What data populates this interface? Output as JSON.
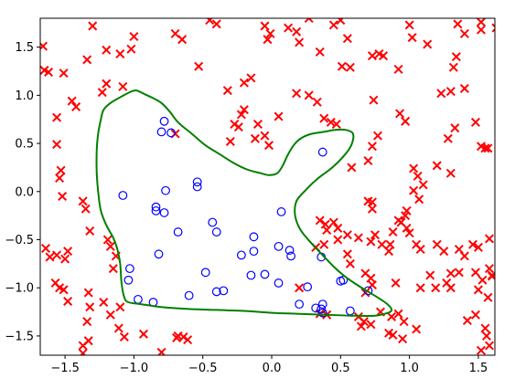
{
  "chart_data": {
    "type": "scatter",
    "title": "",
    "xlabel": "",
    "ylabel": "",
    "xlim": [
      -1.68,
      1.62
    ],
    "ylim": [
      -1.7,
      1.8
    ],
    "grid": false,
    "x_ticks": [
      -1.5,
      -1.0,
      -0.5,
      0.0,
      0.5,
      1.0,
      1.5
    ],
    "x_tick_labels": [
      "−1.5",
      "−1.0",
      "−0.5",
      "0.0",
      "0.5",
      "1.0",
      "1.5"
    ],
    "y_ticks": [
      -1.5,
      -1.0,
      -0.5,
      0.0,
      0.5,
      1.0,
      1.5
    ],
    "y_tick_labels": [
      "−1.5",
      "−1.0",
      "−0.5",
      "0.0",
      "0.5",
      "1.0",
      "1.5"
    ],
    "colors": {
      "class_x": "#ff0000",
      "class_o": "#0000ff",
      "boundary": "#008000",
      "axes": "#000000"
    },
    "series": [
      {
        "marker": "x",
        "points": [
          [
            -1.66,
            1.51
          ],
          [
            -1.65,
            1.26
          ],
          [
            -1.62,
            1.24
          ],
          [
            -1.3,
            1.72
          ],
          [
            -1.2,
            1.47
          ],
          [
            -1.1,
            1.43
          ],
          [
            -1.0,
            1.61
          ],
          [
            -1.02,
            1.48
          ],
          [
            -0.7,
            1.64
          ],
          [
            -0.65,
            1.58
          ],
          [
            -0.45,
            1.78
          ],
          [
            -0.4,
            1.74
          ],
          [
            -0.53,
            1.3
          ],
          [
            -0.32,
            1.05
          ],
          [
            -0.2,
            1.13
          ],
          [
            -0.15,
            1.18
          ],
          [
            -0.05,
            1.72
          ],
          [
            -0.03,
            1.58
          ],
          [
            -0.01,
            1.64
          ],
          [
            0.12,
            1.7
          ],
          [
            0.18,
            1.66
          ],
          [
            0.27,
            1.8
          ],
          [
            0.2,
            1.55
          ],
          [
            0.35,
            1.45
          ],
          [
            0.45,
            1.73
          ],
          [
            0.5,
            1.78
          ],
          [
            0.55,
            1.59
          ],
          [
            0.51,
            1.3
          ],
          [
            0.57,
            1.29
          ],
          [
            0.78,
            1.43
          ],
          [
            0.81,
            1.41
          ],
          [
            0.73,
            1.41
          ],
          [
            0.92,
            1.27
          ],
          [
            1.0,
            1.73
          ],
          [
            1.02,
            1.6
          ],
          [
            1.13,
            1.53
          ],
          [
            1.35,
            1.74
          ],
          [
            1.4,
            1.64
          ],
          [
            1.52,
            1.76
          ],
          [
            1.52,
            1.68
          ],
          [
            1.63,
            1.7
          ],
          [
            1.23,
            1.02
          ],
          [
            1.34,
            1.4
          ],
          [
            1.32,
            1.29
          ],
          [
            1.3,
            1.04
          ],
          [
            1.4,
            1.07
          ],
          [
            -1.51,
            1.23
          ],
          [
            -1.34,
            1.37
          ],
          [
            -1.45,
            0.94
          ],
          [
            -1.42,
            0.88
          ],
          [
            -1.56,
            0.77
          ],
          [
            -1.56,
            0.49
          ],
          [
            -1.53,
            0.22
          ],
          [
            -1.54,
            0.14
          ],
          [
            -1.52,
            -0.05
          ],
          [
            -1.37,
            -0.1
          ],
          [
            -1.35,
            -0.18
          ],
          [
            -1.08,
            1.09
          ],
          [
            -1.2,
            1.12
          ],
          [
            -1.23,
            1.03
          ],
          [
            -0.7,
            0.6
          ],
          [
            -0.3,
            0.52
          ],
          [
            -0.27,
            0.7
          ],
          [
            -0.22,
            0.8
          ],
          [
            -0.2,
            0.85
          ],
          [
            -0.24,
            0.67
          ],
          [
            -0.12,
            0.55
          ],
          [
            -0.1,
            0.7
          ],
          [
            -0.05,
            0.58
          ],
          [
            -0.02,
            0.48
          ],
          [
            0.05,
            0.78
          ],
          [
            0.18,
            1.02
          ],
          [
            0.27,
            1.0
          ],
          [
            0.33,
            0.93
          ],
          [
            0.38,
            0.76
          ],
          [
            0.43,
            0.72
          ],
          [
            0.47,
            0.7
          ],
          [
            0.58,
            0.25
          ],
          [
            0.7,
            0.32
          ],
          [
            0.73,
            0.47
          ],
          [
            0.77,
            0.58
          ],
          [
            0.74,
            0.95
          ],
          [
            0.93,
            0.81
          ],
          [
            0.97,
            0.73
          ],
          [
            1.03,
            0.24
          ],
          [
            1.06,
            0.16
          ],
          [
            1.03,
            0.01
          ],
          [
            1.07,
            -0.08
          ],
          [
            1.1,
            0.07
          ],
          [
            1.2,
            0.27
          ],
          [
            1.3,
            0.19
          ],
          [
            1.28,
            0.55
          ],
          [
            1.33,
            0.66
          ],
          [
            1.48,
            0.72
          ],
          [
            1.52,
            0.47
          ],
          [
            1.55,
            0.45
          ],
          [
            1.57,
            0.45
          ],
          [
            -1.61,
            -0.68
          ],
          [
            -1.64,
            -0.59
          ],
          [
            -1.56,
            -0.66
          ],
          [
            -1.5,
            -0.7
          ],
          [
            -1.48,
            -0.62
          ],
          [
            -1.57,
            -0.95
          ],
          [
            -1.54,
            -1.0
          ],
          [
            -1.51,
            -1.02
          ],
          [
            -1.48,
            -1.14
          ],
          [
            -1.33,
            -1.05
          ],
          [
            -1.32,
            -1.2
          ],
          [
            -1.34,
            -1.35
          ],
          [
            -1.33,
            -1.55
          ],
          [
            -1.37,
            -1.6
          ],
          [
            -1.37,
            -1.68
          ],
          [
            -1.15,
            -0.8
          ],
          [
            -1.22,
            -1.15
          ],
          [
            -1.17,
            -1.28
          ],
          [
            -1.11,
            -1.42
          ],
          [
            -1.1,
            -1.2
          ],
          [
            -1.07,
            -1.51
          ],
          [
            -0.93,
            -1.48
          ],
          [
            -0.8,
            -1.67
          ],
          [
            -0.68,
            -1.5
          ],
          [
            -0.64,
            -1.51
          ],
          [
            -0.61,
            -1.54
          ],
          [
            -0.69,
            -1.52
          ],
          [
            -1.13,
            -0.67
          ],
          [
            -1.17,
            -0.57
          ],
          [
            -1.19,
            -0.5
          ],
          [
            -1.32,
            -0.41
          ],
          [
            0.2,
            -1.0
          ],
          [
            0.35,
            -1.27
          ],
          [
            0.4,
            -1.28
          ],
          [
            0.63,
            -1.3
          ],
          [
            0.65,
            -1.4
          ],
          [
            0.67,
            -1.35
          ],
          [
            0.72,
            -1.38
          ],
          [
            0.85,
            -1.47
          ],
          [
            0.88,
            -1.49
          ],
          [
            1.05,
            -1.43
          ],
          [
            0.95,
            -1.53
          ],
          [
            1.08,
            -1.0
          ],
          [
            1.19,
            -1.0
          ],
          [
            1.15,
            -0.87
          ],
          [
            1.3,
            -1.0
          ],
          [
            1.36,
            -0.84
          ],
          [
            1.48,
            -0.84
          ],
          [
            1.58,
            -0.8
          ],
          [
            1.6,
            -0.88
          ],
          [
            1.6,
            -0.87
          ],
          [
            1.53,
            -0.92
          ],
          [
            1.5,
            -1.02
          ],
          [
            1.57,
            -1.1
          ],
          [
            1.48,
            -1.28
          ],
          [
            1.42,
            -1.34
          ],
          [
            1.55,
            -1.42
          ],
          [
            1.56,
            -1.5
          ],
          [
            1.58,
            -1.6
          ],
          [
            1.52,
            -1.65
          ],
          [
            1.3,
            -0.85
          ],
          [
            1.27,
            -0.95
          ],
          [
            0.35,
            -0.3
          ],
          [
            0.39,
            -0.34
          ],
          [
            0.4,
            -0.4
          ],
          [
            0.45,
            -0.32
          ],
          [
            0.48,
            -0.38
          ],
          [
            0.55,
            -0.45
          ],
          [
            0.63,
            -0.48
          ],
          [
            0.72,
            -0.52
          ],
          [
            0.75,
            -0.45
          ],
          [
            0.8,
            -0.55
          ],
          [
            0.85,
            -0.62
          ],
          [
            0.86,
            -0.55
          ],
          [
            0.88,
            -0.42
          ],
          [
            0.94,
            -0.32
          ],
          [
            1.0,
            -0.43
          ],
          [
            1.05,
            -0.55
          ],
          [
            1.08,
            -0.6
          ],
          [
            1.2,
            -0.55
          ],
          [
            1.25,
            -0.62
          ],
          [
            1.36,
            -0.6
          ],
          [
            1.4,
            -0.67
          ],
          [
            1.46,
            -0.55
          ],
          [
            1.5,
            -0.58
          ],
          [
            1.58,
            -0.49
          ],
          [
            0.55,
            -0.65
          ],
          [
            0.57,
            -0.75
          ],
          [
            0.68,
            -0.85
          ],
          [
            0.72,
            -0.9
          ],
          [
            0.73,
            -0.97
          ],
          [
            0.68,
            -1.05
          ],
          [
            0.9,
            -0.95
          ],
          [
            0.79,
            -1.25
          ],
          [
            0.87,
            -1.3
          ],
          [
            0.92,
            -1.27
          ],
          [
            0.96,
            -1.35
          ],
          [
            0.32,
            -0.58
          ],
          [
            0.38,
            -0.55
          ],
          [
            0.48,
            -0.5
          ],
          [
            0.7,
            -0.1
          ],
          [
            0.73,
            -0.11
          ],
          [
            0.73,
            -0.18
          ],
          [
            0.92,
            -0.3
          ],
          [
            0.98,
            -0.38
          ],
          [
            0.97,
            -0.25
          ],
          [
            0.98,
            -0.2
          ]
        ]
      },
      {
        "marker": "o",
        "points": [
          [
            -1.08,
            -0.04
          ],
          [
            -0.78,
            0.73
          ],
          [
            -0.8,
            0.62
          ],
          [
            -0.73,
            0.61
          ],
          [
            -0.77,
            0.01
          ],
          [
            -0.84,
            -0.16
          ],
          [
            -0.84,
            -0.2
          ],
          [
            -0.78,
            -0.22
          ],
          [
            -0.68,
            -0.42
          ],
          [
            -0.54,
            0.1
          ],
          [
            -0.54,
            0.05
          ],
          [
            -0.43,
            -0.32
          ],
          [
            -0.4,
            -0.42
          ],
          [
            -1.03,
            -0.8
          ],
          [
            -1.04,
            -0.92
          ],
          [
            -0.82,
            -0.65
          ],
          [
            -0.97,
            -1.12
          ],
          [
            -0.86,
            -1.15
          ],
          [
            -0.6,
            -1.08
          ],
          [
            -0.48,
            -0.84
          ],
          [
            -0.4,
            -1.04
          ],
          [
            -0.35,
            -1.03
          ],
          [
            -0.22,
            -0.66
          ],
          [
            -0.13,
            -0.47
          ],
          [
            -0.13,
            -0.62
          ],
          [
            -0.15,
            -0.87
          ],
          [
            -0.05,
            -0.86
          ],
          [
            0.05,
            -0.95
          ],
          [
            0.05,
            -0.57
          ],
          [
            0.07,
            -0.21
          ],
          [
            0.13,
            -0.61
          ],
          [
            0.14,
            -0.67
          ],
          [
            0.2,
            -1.17
          ],
          [
            0.26,
            -0.99
          ],
          [
            0.36,
            -0.68
          ],
          [
            0.37,
            -1.17
          ],
          [
            0.36,
            -1.22
          ],
          [
            0.37,
            -1.26
          ],
          [
            0.32,
            -1.21
          ],
          [
            0.37,
            0.41
          ],
          [
            0.5,
            -0.93
          ],
          [
            0.52,
            -0.92
          ],
          [
            0.57,
            -1.24
          ],
          [
            0.7,
            -1.03
          ]
        ]
      }
    ],
    "decision_boundary": [
      [
        -1.02,
        1.04
      ],
      [
        -0.98,
        1.05
      ],
      [
        -0.92,
        1.01
      ],
      [
        -0.86,
        0.97
      ],
      [
        -0.8,
        0.92
      ],
      [
        -0.74,
        0.83
      ],
      [
        -0.68,
        0.72
      ],
      [
        -0.58,
        0.6
      ],
      [
        -0.48,
        0.48
      ],
      [
        -0.38,
        0.39
      ],
      [
        -0.28,
        0.3
      ],
      [
        -0.18,
        0.23
      ],
      [
        -0.08,
        0.19
      ],
      [
        -0.02,
        0.17
      ],
      [
        0.04,
        0.19
      ],
      [
        0.08,
        0.27
      ],
      [
        0.12,
        0.39
      ],
      [
        0.17,
        0.5
      ],
      [
        0.22,
        0.56
      ],
      [
        0.29,
        0.6
      ],
      [
        0.38,
        0.62
      ],
      [
        0.46,
        0.64
      ],
      [
        0.54,
        0.64
      ],
      [
        0.59,
        0.6
      ],
      [
        0.58,
        0.49
      ],
      [
        0.53,
        0.38
      ],
      [
        0.44,
        0.25
      ],
      [
        0.33,
        0.13
      ],
      [
        0.25,
        0.02
      ],
      [
        0.18,
        -0.1
      ],
      [
        0.17,
        -0.25
      ],
      [
        0.21,
        -0.4
      ],
      [
        0.29,
        -0.54
      ],
      [
        0.37,
        -0.66
      ],
      [
        0.45,
        -0.78
      ],
      [
        0.53,
        -0.88
      ],
      [
        0.62,
        -0.97
      ],
      [
        0.7,
        -1.04
      ],
      [
        0.78,
        -1.11
      ],
      [
        0.84,
        -1.17
      ],
      [
        0.87,
        -1.22
      ],
      [
        0.86,
        -1.25
      ],
      [
        0.82,
        -1.27
      ],
      [
        0.75,
        -1.29
      ],
      [
        0.6,
        -1.29
      ],
      [
        0.4,
        -1.28
      ],
      [
        0.2,
        -1.27
      ],
      [
        0.0,
        -1.26
      ],
      [
        -0.2,
        -1.24
      ],
      [
        -0.4,
        -1.23
      ],
      [
        -0.6,
        -1.22
      ],
      [
        -0.8,
        -1.2
      ],
      [
        -0.95,
        -1.17
      ],
      [
        -1.04,
        -1.15
      ],
      [
        -1.07,
        -1.1
      ],
      [
        -1.09,
        -0.95
      ],
      [
        -1.1,
        -0.75
      ],
      [
        -1.12,
        -0.6
      ],
      [
        -1.15,
        -0.48
      ],
      [
        -1.2,
        -0.35
      ],
      [
        -1.24,
        -0.2
      ],
      [
        -1.26,
        0.0
      ],
      [
        -1.27,
        0.2
      ],
      [
        -1.27,
        0.42
      ],
      [
        -1.26,
        0.6
      ],
      [
        -1.24,
        0.75
      ],
      [
        -1.22,
        0.85
      ],
      [
        -1.17,
        0.92
      ],
      [
        -1.1,
        0.98
      ],
      [
        -1.02,
        1.04
      ]
    ]
  }
}
